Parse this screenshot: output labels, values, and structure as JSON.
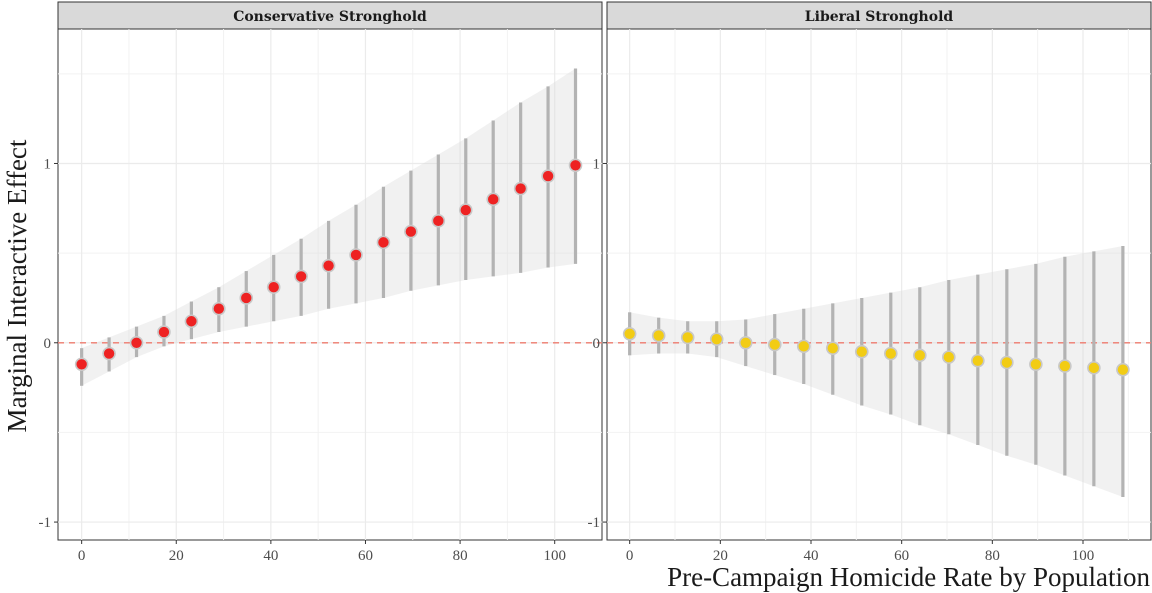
{
  "chart_data": {
    "type": "scatter",
    "xlabel": "Pre-Campaign Homicide Rate by Population",
    "ylabel": "Marginal Interactive Effect",
    "reference_line": {
      "y": 0,
      "style": "dashed",
      "color": "#ee7b6e"
    },
    "panels": [
      {
        "title": "Conservative Stronghold",
        "color": "#ee2222",
        "xlim": [
          -5,
          110
        ],
        "ylim": [
          -1.1,
          1.75
        ],
        "x_ticks": [
          0,
          20,
          40,
          60,
          80,
          100
        ],
        "y_ticks": [
          -1,
          0,
          1
        ],
        "y_tick_labels": [
          "-1",
          "0",
          "1"
        ],
        "points": [
          {
            "x": 0,
            "y": -0.12,
            "lo": -0.24,
            "hi": -0.03
          },
          {
            "x": 5.8,
            "y": -0.06,
            "lo": -0.16,
            "hi": 0.03
          },
          {
            "x": 11.6,
            "y": 0.0,
            "lo": -0.08,
            "hi": 0.09
          },
          {
            "x": 17.4,
            "y": 0.06,
            "lo": -0.02,
            "hi": 0.15
          },
          {
            "x": 23.2,
            "y": 0.12,
            "lo": 0.02,
            "hi": 0.23
          },
          {
            "x": 29.0,
            "y": 0.19,
            "lo": 0.06,
            "hi": 0.31
          },
          {
            "x": 34.8,
            "y": 0.25,
            "lo": 0.09,
            "hi": 0.4
          },
          {
            "x": 40.6,
            "y": 0.31,
            "lo": 0.12,
            "hi": 0.49
          },
          {
            "x": 46.4,
            "y": 0.37,
            "lo": 0.15,
            "hi": 0.58
          },
          {
            "x": 52.2,
            "y": 0.43,
            "lo": 0.19,
            "hi": 0.68
          },
          {
            "x": 58.0,
            "y": 0.49,
            "lo": 0.22,
            "hi": 0.77
          },
          {
            "x": 63.8,
            "y": 0.56,
            "lo": 0.25,
            "hi": 0.87
          },
          {
            "x": 69.6,
            "y": 0.62,
            "lo": 0.29,
            "hi": 0.96
          },
          {
            "x": 75.4,
            "y": 0.68,
            "lo": 0.32,
            "hi": 1.05
          },
          {
            "x": 81.2,
            "y": 0.74,
            "lo": 0.35,
            "hi": 1.14
          },
          {
            "x": 87.0,
            "y": 0.8,
            "lo": 0.37,
            "hi": 1.24
          },
          {
            "x": 92.8,
            "y": 0.86,
            "lo": 0.39,
            "hi": 1.34
          },
          {
            "x": 98.6,
            "y": 0.93,
            "lo": 0.42,
            "hi": 1.43
          },
          {
            "x": 104.4,
            "y": 0.99,
            "lo": 0.44,
            "hi": 1.53
          }
        ]
      },
      {
        "title": "Liberal Stronghold",
        "color": "#f2cc14",
        "xlim": [
          -5,
          115
        ],
        "ylim": [
          -1.1,
          1.75
        ],
        "x_ticks": [
          0,
          20,
          40,
          60,
          80,
          100
        ],
        "y_ticks": [
          -1,
          0,
          1
        ],
        "y_tick_labels": [
          "-1",
          "0",
          "1"
        ],
        "points": [
          {
            "x": 0,
            "y": 0.05,
            "lo": -0.07,
            "hi": 0.17
          },
          {
            "x": 6.4,
            "y": 0.04,
            "lo": -0.06,
            "hi": 0.14
          },
          {
            "x": 12.8,
            "y": 0.03,
            "lo": -0.06,
            "hi": 0.12
          },
          {
            "x": 19.2,
            "y": 0.02,
            "lo": -0.08,
            "hi": 0.12
          },
          {
            "x": 25.6,
            "y": 0.0,
            "lo": -0.13,
            "hi": 0.13
          },
          {
            "x": 32.0,
            "y": -0.01,
            "lo": -0.18,
            "hi": 0.16
          },
          {
            "x": 38.4,
            "y": -0.02,
            "lo": -0.23,
            "hi": 0.19
          },
          {
            "x": 44.8,
            "y": -0.03,
            "lo": -0.29,
            "hi": 0.22
          },
          {
            "x": 51.2,
            "y": -0.05,
            "lo": -0.35,
            "hi": 0.25
          },
          {
            "x": 57.6,
            "y": -0.06,
            "lo": -0.4,
            "hi": 0.28
          },
          {
            "x": 64.0,
            "y": -0.07,
            "lo": -0.46,
            "hi": 0.31
          },
          {
            "x": 70.4,
            "y": -0.08,
            "lo": -0.51,
            "hi": 0.35
          },
          {
            "x": 76.8,
            "y": -0.1,
            "lo": -0.57,
            "hi": 0.38
          },
          {
            "x": 83.2,
            "y": -0.11,
            "lo": -0.63,
            "hi": 0.41
          },
          {
            "x": 89.6,
            "y": -0.12,
            "lo": -0.68,
            "hi": 0.44
          },
          {
            "x": 96.0,
            "y": -0.13,
            "lo": -0.74,
            "hi": 0.48
          },
          {
            "x": 102.4,
            "y": -0.14,
            "lo": -0.8,
            "hi": 0.51
          },
          {
            "x": 108.8,
            "y": -0.15,
            "lo": -0.86,
            "hi": 0.54
          }
        ]
      }
    ]
  }
}
